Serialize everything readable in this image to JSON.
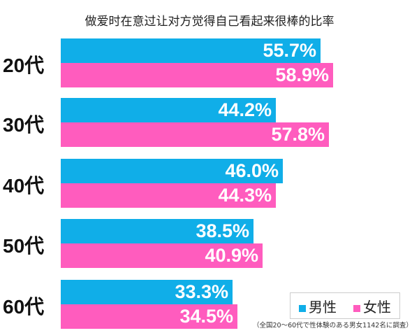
{
  "chart_data": {
    "type": "bar",
    "orientation": "horizontal",
    "title": "做爱时在意过让对方觉得自己看起来很棒的比率",
    "categories": [
      "20代",
      "30代",
      "40代",
      "50代",
      "60代"
    ],
    "series": [
      {
        "name": "男性",
        "color": "#10aee8",
        "values": [
          55.7,
          44.2,
          46.0,
          38.5,
          33.3
        ],
        "labels": [
          "55.7%",
          "44.2%",
          "46.0%",
          "38.5%",
          "33.3%"
        ]
      },
      {
        "name": "女性",
        "color": "#ff5cbe",
        "values": [
          58.9,
          57.8,
          44.3,
          40.9,
          34.5
        ],
        "labels": [
          "58.9%",
          "57.8%",
          "44.3%",
          "40.9%",
          "34.5%"
        ]
      }
    ],
    "legend": "bottom-right",
    "grid": false,
    "note": "（全国20〜60代で性体験のある男女1142名に調査）"
  }
}
